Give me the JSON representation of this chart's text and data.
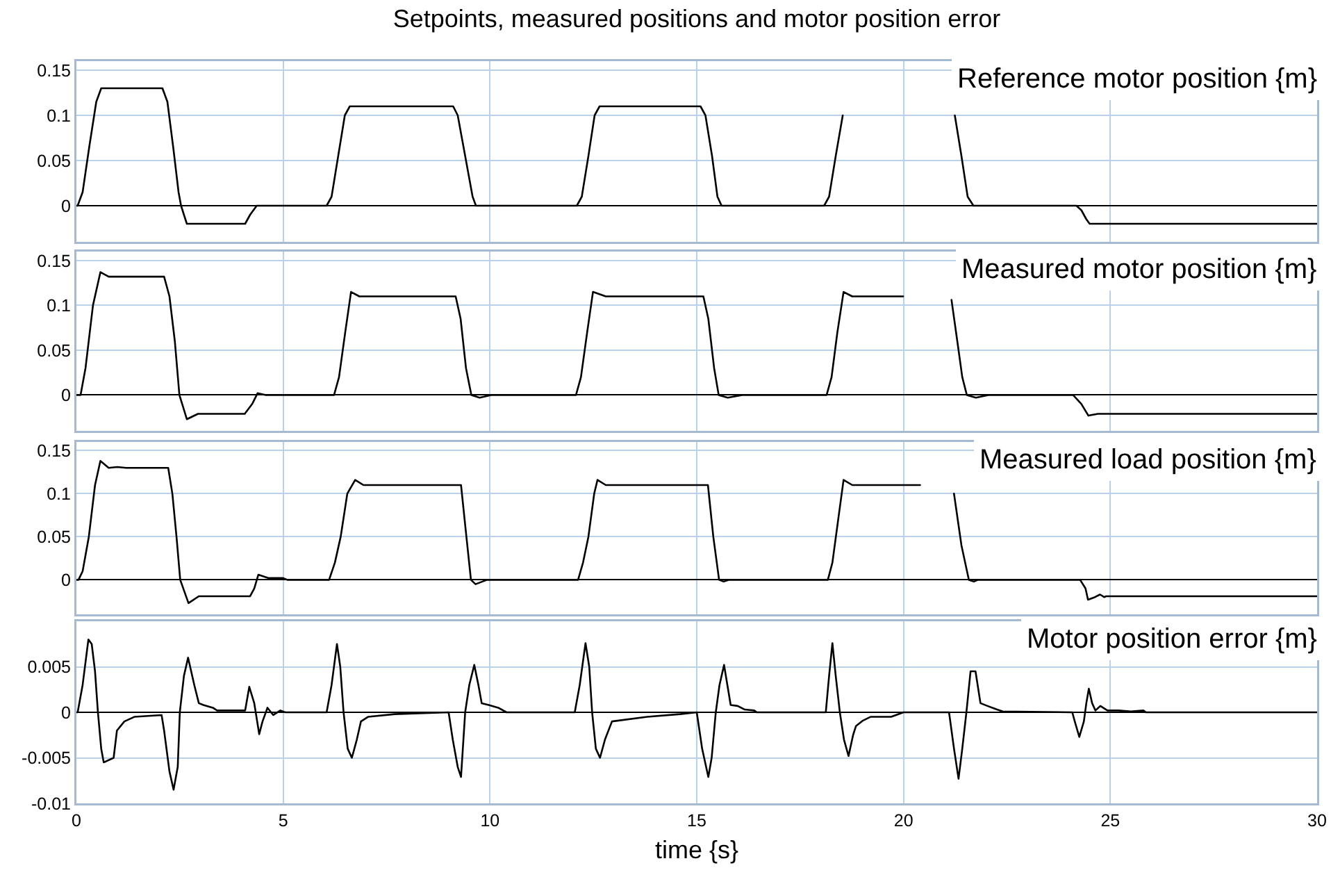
{
  "chart_data": [
    {
      "type": "line",
      "title": "Setpoints, measured positions and motor position error",
      "xlim": [
        0,
        30
      ],
      "xticks": [
        0,
        5,
        10,
        15,
        20,
        25,
        30
      ],
      "ylim": [
        -0.04,
        0.16
      ],
      "yticks": [
        0,
        0.05,
        0.1,
        0.15
      ],
      "grid": true,
      "legend": "top right",
      "tick_labels": "y",
      "series": [
        {
          "name": "Reference motor position {m}",
          "color": "#000000",
          "x": [
            0,
            0.03,
            0.15,
            0.31,
            0.48,
            0.6,
            2.08,
            2.2,
            2.34,
            2.47,
            2.53,
            2.6,
            2.67,
            4.08,
            4.2,
            4.36,
            6.05,
            6.17,
            6.33,
            6.49,
            6.61,
            9.11,
            9.22,
            9.4,
            9.58,
            9.66,
            12.1,
            12.22,
            12.38,
            12.53,
            12.65,
            15.09,
            15.21,
            15.37,
            15.5,
            15.6,
            18.08,
            18.2,
            18.36,
            18.53,
            19.9,
            21.24,
            21.4,
            21.55,
            21.69,
            24.18,
            24.3,
            24.42,
            24.5,
            30
          ],
          "values": [
            0,
            0,
            0.015,
            0.065,
            0.115,
            0.13,
            0.13,
            0.115,
            0.065,
            0.015,
            0,
            -0.01,
            -0.02,
            -0.02,
            -0.01,
            0,
            0,
            0.01,
            0.055,
            0.1,
            0.11,
            0.11,
            0.1,
            0.055,
            0.01,
            0,
            0,
            0.01,
            0.055,
            0.1,
            0.11,
            0.11,
            0.1,
            0.055,
            0.01,
            0,
            0,
            0.01,
            0.055,
            0.1,
            null,
            0.1,
            0.055,
            0.01,
            0,
            0,
            -0.005,
            -0.015,
            -0.02,
            -0.02
          ]
        }
      ]
    },
    {
      "type": "line",
      "xlim": [
        0,
        30
      ],
      "xticks": [
        0,
        5,
        10,
        15,
        20,
        25,
        30
      ],
      "ylim": [
        -0.04,
        0.16
      ],
      "yticks": [
        0,
        0.05,
        0.1,
        0.15
      ],
      "grid": true,
      "legend": "top right",
      "tick_labels": "y",
      "series": [
        {
          "name": "Measured motor position {m}",
          "color": "#000000",
          "x": [
            0,
            0.1,
            0.22,
            0.4,
            0.58,
            0.78,
            2.12,
            2.25,
            2.38,
            2.49,
            2.67,
            2.94,
            4.07,
            4.25,
            4.38,
            4.58,
            6.23,
            6.35,
            6.5,
            6.64,
            6.84,
            9.17,
            9.29,
            9.42,
            9.55,
            9.75,
            10.03,
            12.08,
            12.2,
            12.35,
            12.49,
            12.8,
            15.16,
            15.28,
            15.42,
            15.53,
            15.75,
            16.1,
            18.14,
            18.26,
            18.4,
            18.55,
            18.76,
            19.99,
            20.6,
            21.16,
            21.3,
            21.42,
            21.53,
            21.75,
            22.05,
            24.1,
            24.3,
            24.47,
            24.7,
            30
          ],
          "values": [
            0,
            0,
            0.03,
            0.1,
            0.137,
            0.132,
            0.132,
            0.11,
            0.06,
            0,
            -0.027,
            -0.021,
            -0.021,
            -0.01,
            0.002,
            0,
            0,
            0.02,
            0.07,
            0.115,
            0.11,
            0.11,
            0.085,
            0.03,
            0,
            -0.003,
            0,
            0,
            0.02,
            0.07,
            0.115,
            0.11,
            0.11,
            0.085,
            0.03,
            0,
            -0.003,
            0,
            0,
            0.02,
            0.07,
            0.115,
            0.11,
            0.11,
            null,
            0.106,
            0.06,
            0.02,
            0,
            -0.003,
            0,
            0,
            -0.01,
            -0.023,
            -0.021,
            -0.021
          ]
        }
      ]
    },
    {
      "type": "line",
      "xlim": [
        0,
        30
      ],
      "xticks": [
        0,
        5,
        10,
        15,
        20,
        25,
        30
      ],
      "ylim": [
        -0.04,
        0.16
      ],
      "yticks": [
        0,
        0.05,
        0.1,
        0.15
      ],
      "grid": true,
      "legend": "top right",
      "tick_labels": "y",
      "series": [
        {
          "name": "Measured load position {m}",
          "color": "#000000",
          "x": [
            0,
            0.05,
            0.15,
            0.3,
            0.45,
            0.58,
            0.78,
            0.99,
            1.2,
            2.22,
            2.32,
            2.42,
            2.51,
            2.71,
            2.96,
            4.2,
            4.3,
            4.4,
            4.65,
            5.0,
            5.1,
            6.11,
            6.25,
            6.39,
            6.55,
            6.74,
            6.94,
            9.3,
            9.43,
            9.54,
            9.65,
            9.93,
            12.13,
            12.25,
            12.38,
            12.52,
            12.6,
            12.8,
            15.27,
            15.4,
            15.54,
            15.65,
            15.77,
            18.17,
            18.28,
            18.42,
            18.55,
            18.76,
            20.4,
            20.8,
            21.22,
            21.4,
            21.58,
            21.7,
            21.8,
            24.27,
            24.4,
            24.46,
            24.63,
            24.75,
            24.85,
            24.9,
            30
          ],
          "values": [
            0,
            0,
            0.01,
            0.05,
            0.11,
            0.138,
            0.13,
            0.131,
            0.13,
            0.13,
            0.1,
            0.05,
            0,
            -0.027,
            -0.019,
            -0.019,
            -0.01,
            0.006,
            0.002,
            0.002,
            0,
            0,
            0.02,
            0.05,
            0.1,
            0.116,
            0.11,
            0.11,
            0.05,
            0,
            -0.005,
            0,
            0,
            0.02,
            0.05,
            0.1,
            0.116,
            0.11,
            0.11,
            0.05,
            0,
            -0.002,
            0,
            0,
            0.02,
            0.07,
            0.116,
            0.11,
            0.11,
            null,
            0.1,
            0.04,
            0,
            -0.002,
            0,
            0,
            -0.01,
            -0.023,
            -0.02,
            -0.017,
            -0.02,
            -0.019,
            -0.019
          ]
        }
      ]
    },
    {
      "type": "line",
      "xlabel": "time {s}",
      "xlim": [
        0,
        30
      ],
      "xticks": [
        0,
        5,
        10,
        15,
        20,
        25,
        30
      ],
      "ylim": [
        -0.01,
        0.01
      ],
      "yticks": [
        -0.01,
        -0.005,
        0,
        0.005
      ],
      "grid": true,
      "legend": "top right",
      "series": [
        {
          "name": "Motor position error {m}",
          "color": "#000000",
          "x": [
            0,
            0.03,
            0.15,
            0.29,
            0.37,
            0.45,
            0.52,
            0.6,
            0.66,
            0.9,
            0.98,
            1.16,
            1.4,
            2.06,
            2.12,
            2.25,
            2.35,
            2.45,
            2.5,
            2.6,
            2.7,
            2.85,
            2.96,
            3.07,
            3.3,
            3.4,
            4.08,
            4.18,
            4.3,
            4.42,
            4.5,
            4.62,
            4.76,
            4.93,
            5.05,
            6.05,
            6.17,
            6.3,
            6.38,
            6.46,
            6.56,
            6.66,
            6.78,
            6.88,
            7.05,
            7.7,
            9.0,
            9.1,
            9.22,
            9.3,
            9.4,
            9.5,
            9.62,
            9.72,
            9.8,
            9.97,
            10.2,
            10.4,
            12.05,
            12.17,
            12.31,
            12.4,
            12.47,
            12.56,
            12.66,
            12.78,
            12.95,
            13.8,
            14.6,
            15.0,
            15.13,
            15.28,
            15.36,
            15.46,
            15.55,
            15.66,
            15.74,
            15.82,
            15.99,
            16.16,
            16.39,
            16.45,
            18.12,
            18.2,
            18.28,
            18.36,
            18.46,
            18.56,
            18.67,
            18.78,
            18.85,
            19.02,
            19.2,
            19.7,
            20.0,
            21.1,
            21.22,
            21.33,
            21.42,
            21.52,
            21.62,
            21.74,
            21.86,
            22.03,
            22.26,
            22.4,
            24.08,
            24.14,
            24.25,
            24.36,
            24.42,
            24.48,
            24.56,
            24.64,
            24.76,
            24.93,
            25.2,
            25.5,
            25.8,
            25.86,
            30
          ],
          "values": [
            0,
            0,
            0.003,
            0.008,
            0.0075,
            0.0045,
            0,
            -0.004,
            -0.0055,
            -0.005,
            -0.002,
            -0.001,
            -0.0005,
            -0.0003,
            -0.002,
            -0.0065,
            -0.0085,
            -0.006,
            0,
            0.004,
            0.006,
            0.003,
            0.001,
            0.0008,
            0.0005,
            0.0002,
            0.0002,
            0.0028,
            0.001,
            -0.0024,
            -0.001,
            0.0005,
            -0.0003,
            0.0002,
            0,
            0,
            0.003,
            0.0075,
            0.005,
            0,
            -0.004,
            -0.005,
            -0.003,
            -0.001,
            -0.0005,
            -0.0002,
            0,
            -0.003,
            -0.006,
            -0.0071,
            0,
            0.003,
            0.0052,
            0.003,
            0.001,
            0.0008,
            0.0005,
            0,
            0,
            0.003,
            0.0076,
            0.005,
            0,
            -0.004,
            -0.005,
            -0.003,
            -0.001,
            -0.0005,
            -0.0002,
            0,
            -0.004,
            -0.0071,
            -0.005,
            0,
            0.003,
            0.0052,
            0.003,
            0.0008,
            0.0007,
            0.0003,
            0.0002,
            0,
            0,
            0.004,
            0.0076,
            0.004,
            0,
            -0.003,
            -0.0048,
            -0.0025,
            -0.0015,
            -0.0009,
            -0.0005,
            -0.0005,
            0,
            0,
            -0.004,
            -0.0073,
            -0.004,
            0,
            0.0045,
            0.0045,
            0.001,
            0.0007,
            0.0003,
            0.0001,
            0,
            -0.001,
            -0.0027,
            -0.001,
            0.001,
            0.0026,
            0.001,
            0.0002,
            0.0007,
            0.0002,
            0.0002,
            0.0001,
            0.0002,
            0,
            0
          ]
        }
      ]
    }
  ]
}
